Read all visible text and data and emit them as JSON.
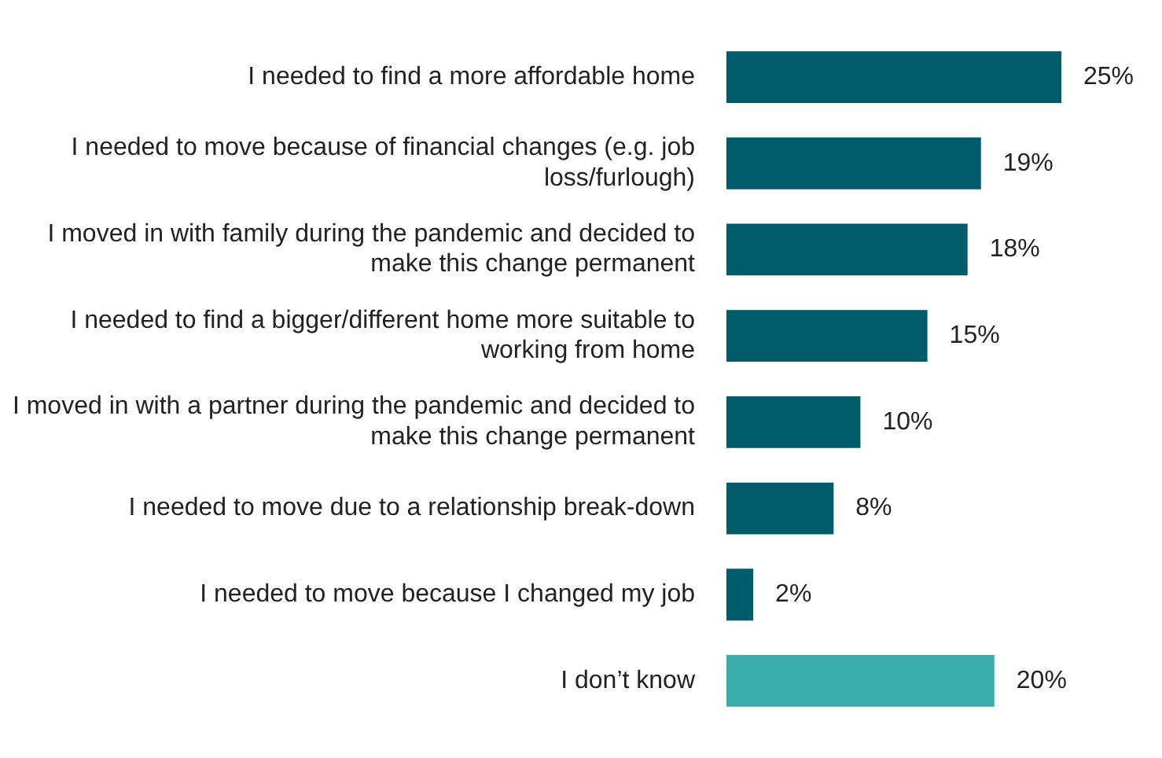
{
  "chart_data": {
    "type": "bar",
    "orientation": "horizontal",
    "categories": [
      "I needed to find a more affordable home",
      "I needed to move because of financial changes (e.g. job loss/furlough)",
      "I moved in with family during the pandemic and decided to make this change permanent",
      "I needed to find a bigger/different home more suitable to working from home",
      "I moved in with a partner during the pandemic and decided to make this change permanent",
      "I needed to move due to a relationship break-down",
      "I needed to move because I changed my job",
      "I don’t know"
    ],
    "values": [
      25,
      19,
      18,
      15,
      10,
      8,
      2,
      20
    ],
    "colors": [
      "#005b6b",
      "#005b6b",
      "#005b6b",
      "#005b6b",
      "#005b6b",
      "#005b6b",
      "#005b6b",
      "#38adab"
    ],
    "value_labels": [
      "25%",
      "19%",
      "18%",
      "15%",
      "10%",
      "8%",
      "2%",
      "20%"
    ],
    "legend": false
  }
}
